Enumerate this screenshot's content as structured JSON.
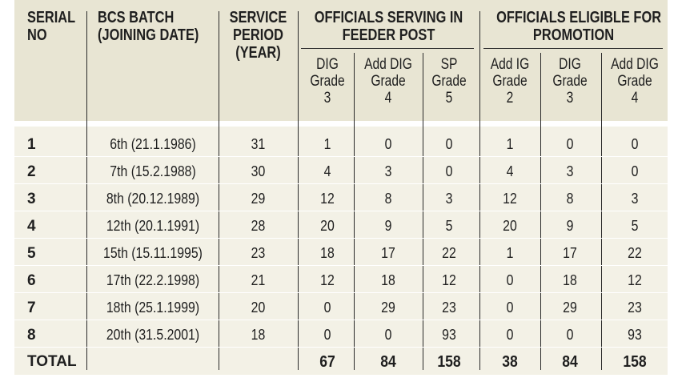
{
  "headers": {
    "serial": [
      "SERIAL",
      "NO"
    ],
    "batch": [
      "BCS BATCH",
      "(JOINING DATE)"
    ],
    "period": [
      "SERVICE",
      "PERIOD",
      "(YEAR)"
    ],
    "feeder": [
      "OFFICIALS SERVING IN",
      "FEEDER POST"
    ],
    "eligible": [
      "OFFICIALS ELIGIBLE FOR",
      "PROMOTION"
    ]
  },
  "subheaders": {
    "feeder": [
      [
        "DIG",
        "Grade",
        "3"
      ],
      [
        "Add DIG",
        "Grade",
        "4"
      ],
      [
        "SP",
        "Grade",
        "5"
      ]
    ],
    "eligible": [
      [
        "Add IG",
        "Grade",
        "2"
      ],
      [
        "DIG",
        "Grade",
        "3"
      ],
      [
        "Add DIG",
        "Grade",
        "4"
      ]
    ]
  },
  "rows": [
    {
      "serial": "1",
      "batch": "6th (21.1.1986)",
      "period": "31",
      "feeder": [
        "1",
        "0",
        "0"
      ],
      "eligible": [
        "1",
        "0",
        "0"
      ]
    },
    {
      "serial": "2",
      "batch": "7th (15.2.1988)",
      "period": "30",
      "feeder": [
        "4",
        "3",
        "0"
      ],
      "eligible": [
        "4",
        "3",
        "0"
      ]
    },
    {
      "serial": "3",
      "batch": "8th (20.12.1989)",
      "period": "29",
      "feeder": [
        "12",
        "8",
        "3"
      ],
      "eligible": [
        "12",
        "8",
        "3"
      ]
    },
    {
      "serial": "4",
      "batch": "12th (20.1.1991)",
      "period": "28",
      "feeder": [
        "20",
        "9",
        "5"
      ],
      "eligible": [
        "20",
        "9",
        "5"
      ]
    },
    {
      "serial": "5",
      "batch": "15th (15.11.1995)",
      "period": "23",
      "feeder": [
        "18",
        "17",
        "22"
      ],
      "eligible": [
        "1",
        "17",
        "22"
      ]
    },
    {
      "serial": "6",
      "batch": "17th (22.2.1998)",
      "period": "21",
      "feeder": [
        "12",
        "18",
        "12"
      ],
      "eligible": [
        "0",
        "18",
        "12"
      ]
    },
    {
      "serial": "7",
      "batch": "18th (25.1.1999)",
      "period": "20",
      "feeder": [
        "0",
        "29",
        "23"
      ],
      "eligible": [
        "0",
        "29",
        "23"
      ]
    },
    {
      "serial": "8",
      "batch": "20th (31.5.2001)",
      "period": "18",
      "feeder": [
        "0",
        "0",
        "93"
      ],
      "eligible": [
        "0",
        "0",
        "93"
      ]
    }
  ],
  "total": {
    "label": "TOTAL",
    "feeder": [
      "67",
      "84",
      "158"
    ],
    "eligible": [
      "38",
      "84",
      "158"
    ]
  },
  "colors": {
    "header_bg": "#e8e5d3",
    "body_bg": "#f3f1e6",
    "text": "#1f1f1f",
    "rule": "#2a2a2a"
  }
}
